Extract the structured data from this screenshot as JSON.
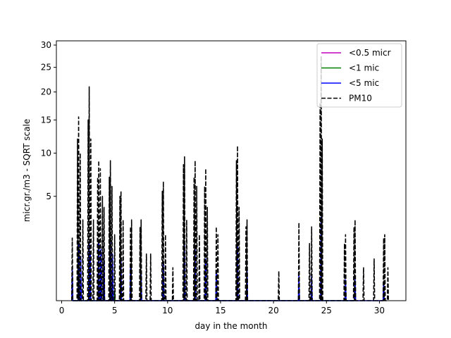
{
  "chart_data": {
    "type": "line",
    "title": "",
    "xlabel": "day in the month",
    "ylabel": "micr.gr./m3 - SQRT scale",
    "y_scale": "sqrt",
    "xlim": [
      -0.5,
      32.5
    ],
    "ylim": [
      0,
      31
    ],
    "x_ticks": [
      0,
      5,
      10,
      15,
      20,
      25,
      30
    ],
    "x_tick_labels": [
      "0",
      "5",
      "10",
      "15",
      "20",
      "25",
      "30"
    ],
    "y_ticks": [
      5,
      10,
      15,
      20,
      25,
      30
    ],
    "y_tick_labels": [
      "5",
      "10",
      "15",
      "20",
      "25",
      "30"
    ],
    "grid": false,
    "legend_position": "top-right",
    "series": [
      {
        "name": "<0.5 micr",
        "color": "#bf00bf",
        "dash": "solid",
        "peaks": [
          [
            3.6,
            0.02
          ],
          [
            4.7,
            0.02
          ],
          [
            24.5,
            0.02
          ]
        ]
      },
      {
        "name": "<1 mic",
        "color": "#008000",
        "dash": "solid",
        "peaks": [
          [
            1.0,
            0.05
          ],
          [
            1.6,
            0.1
          ],
          [
            2.6,
            0.15
          ],
          [
            3.5,
            0.25
          ],
          [
            3.7,
            0.2
          ],
          [
            4.0,
            0.1
          ],
          [
            4.6,
            0.15
          ],
          [
            5.0,
            0.05
          ],
          [
            5.6,
            0.08
          ],
          [
            9.6,
            0.05
          ],
          [
            11.6,
            0.1
          ],
          [
            12.6,
            0.08
          ],
          [
            16.6,
            0.1
          ],
          [
            24.5,
            0.1
          ],
          [
            27.7,
            0.03
          ]
        ]
      },
      {
        "name": "<5 mic",
        "color": "#0000ff",
        "dash": "solid",
        "peaks": [
          [
            1.0,
            0.5
          ],
          [
            1.6,
            1.5
          ],
          [
            1.8,
            0.9
          ],
          [
            2.6,
            1.6
          ],
          [
            2.7,
            1.0
          ],
          [
            3.5,
            1.6
          ],
          [
            3.7,
            1.2
          ],
          [
            4.0,
            0.8
          ],
          [
            4.6,
            1.6
          ],
          [
            4.8,
            1.0
          ],
          [
            5.6,
            0.7
          ],
          [
            6.5,
            0.6
          ],
          [
            7.5,
            0.4
          ],
          [
            9.6,
            0.7
          ],
          [
            11.6,
            1.4
          ],
          [
            12.6,
            1.3
          ],
          [
            13.6,
            0.8
          ],
          [
            14.6,
            0.4
          ],
          [
            16.6,
            1.4
          ],
          [
            17.5,
            0.5
          ],
          [
            22.4,
            0.3
          ],
          [
            23.6,
            0.3
          ],
          [
            24.5,
            3.2
          ],
          [
            26.8,
            0.2
          ],
          [
            27.7,
            0.2
          ],
          [
            30.4,
            0.15
          ]
        ]
      },
      {
        "name": "PM10",
        "color": "#000000",
        "dash": "dashed",
        "peaks": [
          [
            1.0,
            1.8
          ],
          [
            1.5,
            12.0
          ],
          [
            1.6,
            15.5
          ],
          [
            1.75,
            10.0
          ],
          [
            2.0,
            3.0
          ],
          [
            2.5,
            15.0
          ],
          [
            2.6,
            21.0
          ],
          [
            2.75,
            12.0
          ],
          [
            3.0,
            3.0
          ],
          [
            3.4,
            7.0
          ],
          [
            3.5,
            9.0
          ],
          [
            3.65,
            8.0
          ],
          [
            3.85,
            5.0
          ],
          [
            4.0,
            4.0
          ],
          [
            4.5,
            7.0
          ],
          [
            4.6,
            9.0
          ],
          [
            4.75,
            6.0
          ],
          [
            5.0,
            2.0
          ],
          [
            5.5,
            5.0
          ],
          [
            5.6,
            5.5
          ],
          [
            5.8,
            3.0
          ],
          [
            6.5,
            2.5
          ],
          [
            6.6,
            3.0
          ],
          [
            7.4,
            2.5
          ],
          [
            7.5,
            3.0
          ],
          [
            8.0,
            1.0
          ],
          [
            8.4,
            1.0
          ],
          [
            9.5,
            5.5
          ],
          [
            9.6,
            6.5
          ],
          [
            9.8,
            2.0
          ],
          [
            10.5,
            0.5
          ],
          [
            11.5,
            8.5
          ],
          [
            11.6,
            9.5
          ],
          [
            11.8,
            3.0
          ],
          [
            12.5,
            7.0
          ],
          [
            12.6,
            9.0
          ],
          [
            12.75,
            6.0
          ],
          [
            13.0,
            2.0
          ],
          [
            13.5,
            6.0
          ],
          [
            13.6,
            8.0
          ],
          [
            13.75,
            4.0
          ],
          [
            14.6,
            2.5
          ],
          [
            14.75,
            2.0
          ],
          [
            16.5,
            9.0
          ],
          [
            16.6,
            11.0
          ],
          [
            16.75,
            4.0
          ],
          [
            17.4,
            2.5
          ],
          [
            17.5,
            3.0
          ],
          [
            20.5,
            0.4
          ],
          [
            22.4,
            2.8
          ],
          [
            23.4,
            1.5
          ],
          [
            23.6,
            2.5
          ],
          [
            24.4,
            18.0
          ],
          [
            24.5,
            27.5
          ],
          [
            24.6,
            12.0
          ],
          [
            26.7,
            1.5
          ],
          [
            26.8,
            2.0
          ],
          [
            27.6,
            2.5
          ],
          [
            27.7,
            3.0
          ],
          [
            28.5,
            0.5
          ],
          [
            29.5,
            0.8
          ],
          [
            30.4,
            1.8
          ],
          [
            30.5,
            2.0
          ],
          [
            30.8,
            0.5
          ]
        ]
      }
    ]
  }
}
